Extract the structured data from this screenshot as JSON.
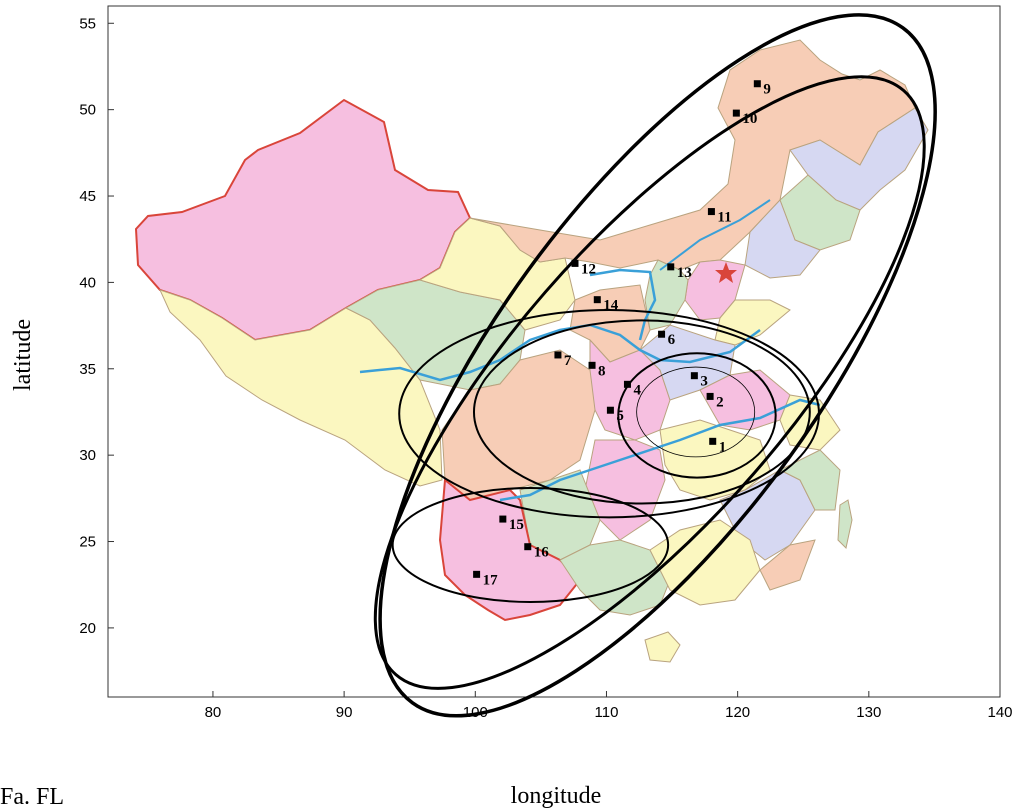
{
  "chart_data": {
    "type": "scatter",
    "xlabel": "longitude",
    "ylabel": "latitude",
    "xlim": [
      72,
      140
    ],
    "ylim": [
      16,
      56
    ],
    "xticks": [
      80,
      90,
      100,
      110,
      120,
      130,
      140
    ],
    "yticks": [
      20,
      25,
      30,
      35,
      40,
      45,
      50,
      55
    ],
    "points": [
      {
        "label": "1",
        "x": 118.1,
        "y": 30.8
      },
      {
        "label": "2",
        "x": 117.9,
        "y": 33.4
      },
      {
        "label": "3",
        "x": 116.7,
        "y": 34.6
      },
      {
        "label": "4",
        "x": 111.6,
        "y": 34.1
      },
      {
        "label": "5",
        "x": 110.3,
        "y": 32.6
      },
      {
        "label": "6",
        "x": 114.2,
        "y": 37.0
      },
      {
        "label": "7",
        "x": 106.3,
        "y": 35.8
      },
      {
        "label": "8",
        "x": 108.9,
        "y": 35.2
      },
      {
        "label": "9",
        "x": 121.5,
        "y": 51.5
      },
      {
        "label": "10",
        "x": 119.9,
        "y": 49.8
      },
      {
        "label": "11",
        "x": 118.0,
        "y": 44.1
      },
      {
        "label": "12",
        "x": 107.6,
        "y": 41.1
      },
      {
        "label": "13",
        "x": 114.9,
        "y": 40.9
      },
      {
        "label": "14",
        "x": 109.3,
        "y": 39.0
      },
      {
        "label": "15",
        "x": 102.1,
        "y": 26.3
      },
      {
        "label": "16",
        "x": 104.0,
        "y": 24.7
      },
      {
        "label": "17",
        "x": 100.1,
        "y": 23.1
      }
    ],
    "clusters": [
      {
        "cx": 116.8,
        "cy": 32.5,
        "rx": 4.5,
        "ry": 2.6,
        "rotation": 0,
        "stroke": 0.8
      },
      {
        "cx": 116.9,
        "cy": 32.3,
        "rx": 6.0,
        "ry": 3.6,
        "rotation": 0,
        "stroke": 2
      },
      {
        "cx": 112.7,
        "cy": 32.5,
        "rx": 12.8,
        "ry": 5.3,
        "rotation": 0,
        "stroke": 2
      },
      {
        "cx": 110.2,
        "cy": 32.4,
        "rx": 16.0,
        "ry": 6.0,
        "rotation": 0,
        "stroke": 2
      },
      {
        "cx": 113.3,
        "cy": 34.2,
        "rx": 29.5,
        "ry": 8.0,
        "rotation": -49,
        "stroke": 3
      },
      {
        "cx": 113.9,
        "cy": 35.2,
        "rx": 31.8,
        "ry": 9.3,
        "rotation": -54,
        "stroke": 3.5
      },
      {
        "cx": 104.2,
        "cy": 24.8,
        "rx": 10.5,
        "ry": 3.3,
        "rotation": 0,
        "stroke": 2
      }
    ]
  },
  "footer_text": "Fa. FL"
}
